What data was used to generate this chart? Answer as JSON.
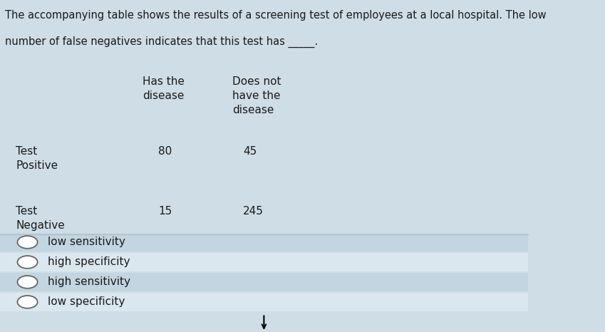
{
  "title_line1": "The accompanying table shows the results of a screening test of employees at a local hospital. The low",
  "title_line2": "number of false negatives indicates that this test has _____.",
  "col_headers": [
    "Has the\ndisease",
    "Does not\nhave the\ndisease"
  ],
  "row_labels": [
    "Test\nPositive",
    "Test\nNegative"
  ],
  "table_values": [
    [
      "80",
      "45"
    ],
    [
      "15",
      "245"
    ]
  ],
  "options": [
    "low sensitivity",
    "high specificity",
    "high sensitivity",
    "low specificity"
  ],
  "bg_color": "#cfdde6",
  "option_bg_color": "#c2d5e0",
  "option_alt_bg": "#dae7ee",
  "text_color": "#1a1a1a",
  "font_size_title": 10.5,
  "font_size_table": 11,
  "font_size_options": 11
}
